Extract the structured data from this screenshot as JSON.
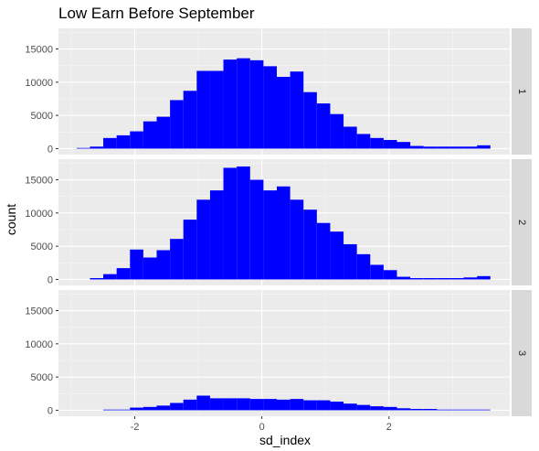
{
  "chart_data": {
    "type": "bar",
    "title": "Low Earn Before September",
    "xlabel": "sd_index",
    "ylabel": "count",
    "xlim": [
      -3.2,
      3.9
    ],
    "ylim": [
      -900,
      18100
    ],
    "x_ticks": [
      -2,
      0,
      2
    ],
    "x_tick_labels": [
      "-2",
      "0",
      "2"
    ],
    "y_ticks": [
      0,
      5000,
      10000,
      15000
    ],
    "y_tick_labels": [
      "0",
      "5000",
      "10000",
      "15000"
    ],
    "grid": true,
    "bar_color": "#0000ff",
    "bin_width": 0.21,
    "x": [
      -2.81,
      -2.6,
      -2.39,
      -2.18,
      -1.97,
      -1.76,
      -1.55,
      -1.34,
      -1.13,
      -0.92,
      -0.71,
      -0.5,
      -0.29,
      -0.08,
      0.13,
      0.34,
      0.55,
      0.76,
      0.97,
      1.18,
      1.39,
      1.6,
      1.81,
      2.02,
      2.23,
      2.44,
      2.65,
      2.86,
      3.07,
      3.28,
      3.49
    ],
    "panels": [
      {
        "strip": "1",
        "values": [
          100,
          300,
          1600,
          2000,
          2600,
          4100,
          4800,
          7300,
          8700,
          11700,
          11700,
          13400,
          13600,
          13300,
          12400,
          10800,
          11600,
          8500,
          6800,
          5200,
          3300,
          2200,
          1600,
          1300,
          1000,
          400,
          300,
          300,
          300,
          300,
          500
        ]
      },
      {
        "strip": "2",
        "values": [
          0,
          200,
          800,
          1700,
          4500,
          3300,
          4400,
          6100,
          9000,
          12000,
          13400,
          16800,
          17000,
          15000,
          13400,
          14000,
          12000,
          10500,
          8500,
          7200,
          5300,
          3800,
          2200,
          1400,
          400,
          200,
          200,
          200,
          200,
          300,
          500
        ]
      },
      {
        "strip": "3",
        "values": [
          0,
          0,
          100,
          100,
          400,
          500,
          700,
          1100,
          1600,
          2200,
          1800,
          1800,
          1800,
          1700,
          1700,
          1600,
          1700,
          1500,
          1500,
          1300,
          1000,
          800,
          600,
          500,
          300,
          200,
          200,
          100,
          100,
          100,
          100
        ]
      }
    ]
  }
}
